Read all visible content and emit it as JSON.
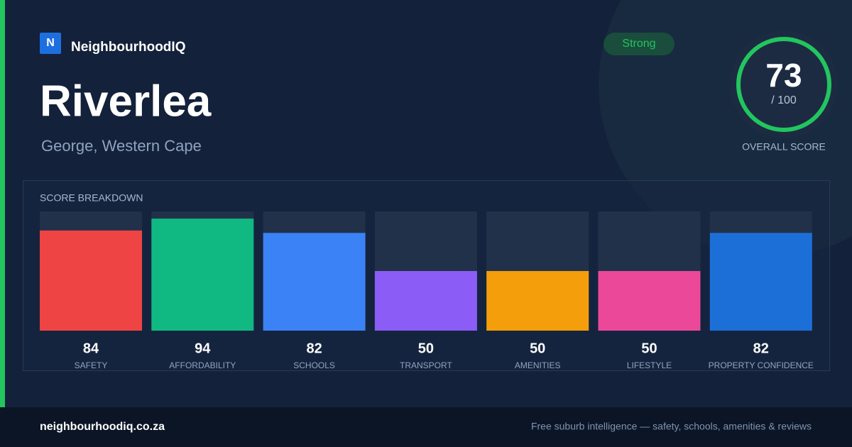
{
  "brand": {
    "logo_letter": "N",
    "name": "NeighbourhoodIQ"
  },
  "badge": "Strong",
  "header": {
    "title": "Riverlea",
    "subtitle": "George, Western Cape"
  },
  "score": {
    "value": 73,
    "max_label": "/ 100",
    "caption": "OVERALL SCORE"
  },
  "chart_data": {
    "type": "bar",
    "title": "SCORE BREAKDOWN",
    "categories": [
      "SAFETY",
      "AFFORDABILITY",
      "SCHOOLS",
      "TRANSPORT",
      "AMENITIES",
      "LIFESTYLE",
      "PROPERTY CONFIDENCE"
    ],
    "values": [
      84,
      94,
      82,
      50,
      50,
      50,
      82
    ],
    "colors": [
      "#ef4444",
      "#10b981",
      "#3b82f6",
      "#8b5cf6",
      "#f59e0b",
      "#ec4899",
      "#1d6fd8"
    ],
    "ylim": [
      0,
      100
    ]
  },
  "footer": {
    "domain": "neighbourhoodiq.co.za",
    "tagline": "Free suburb intelligence — safety, schools, amenities & reviews"
  }
}
